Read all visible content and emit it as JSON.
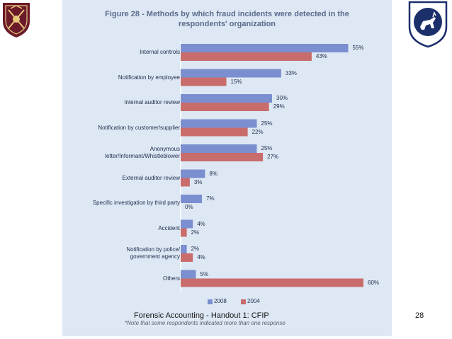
{
  "header": {
    "title_line1": "Figure 28 - Methods by which fraud incidents were detected in the",
    "title_line2": "respondents' organization"
  },
  "chart_data": {
    "type": "bar",
    "orientation": "horizontal",
    "categories": [
      [
        "Internal controls"
      ],
      [
        "Notification by employee"
      ],
      [
        "Internal auditor review"
      ],
      [
        "Notification by customer/supplier"
      ],
      [
        "Anonymous",
        "letter/Informant/Whistleblower"
      ],
      [
        "External auditor review"
      ],
      [
        "Specific investigation by third party"
      ],
      [
        "Accident"
      ],
      [
        "Notification by police/",
        "government agency"
      ],
      [
        "Others"
      ]
    ],
    "series": [
      {
        "name": "2008",
        "values": [
          55,
          33,
          30,
          25,
          25,
          8,
          7,
          4,
          2,
          5
        ],
        "color": "#7b8fd0"
      },
      {
        "name": "2004",
        "values": [
          43,
          15,
          29,
          22,
          27,
          3,
          0,
          2,
          4,
          60
        ],
        "color": "#c96c6c"
      }
    ],
    "value_suffix": "%",
    "xlim": [
      0,
      100
    ],
    "grid": false,
    "legend": "bottom",
    "title": "Figure 28 - Methods by which fraud incidents were detected in the respondents' organization"
  },
  "footnote": "*Note that some respondents indicated more than one response",
  "footer": {
    "text": "Forensic Accounting - Handout 1: CFIP",
    "page": "28"
  },
  "colors": {
    "panel_bg": "#dde8f4",
    "title": "#5b6b8c",
    "logo_left": "#6b1a2a",
    "logo_right": "#1b2f6b"
  }
}
